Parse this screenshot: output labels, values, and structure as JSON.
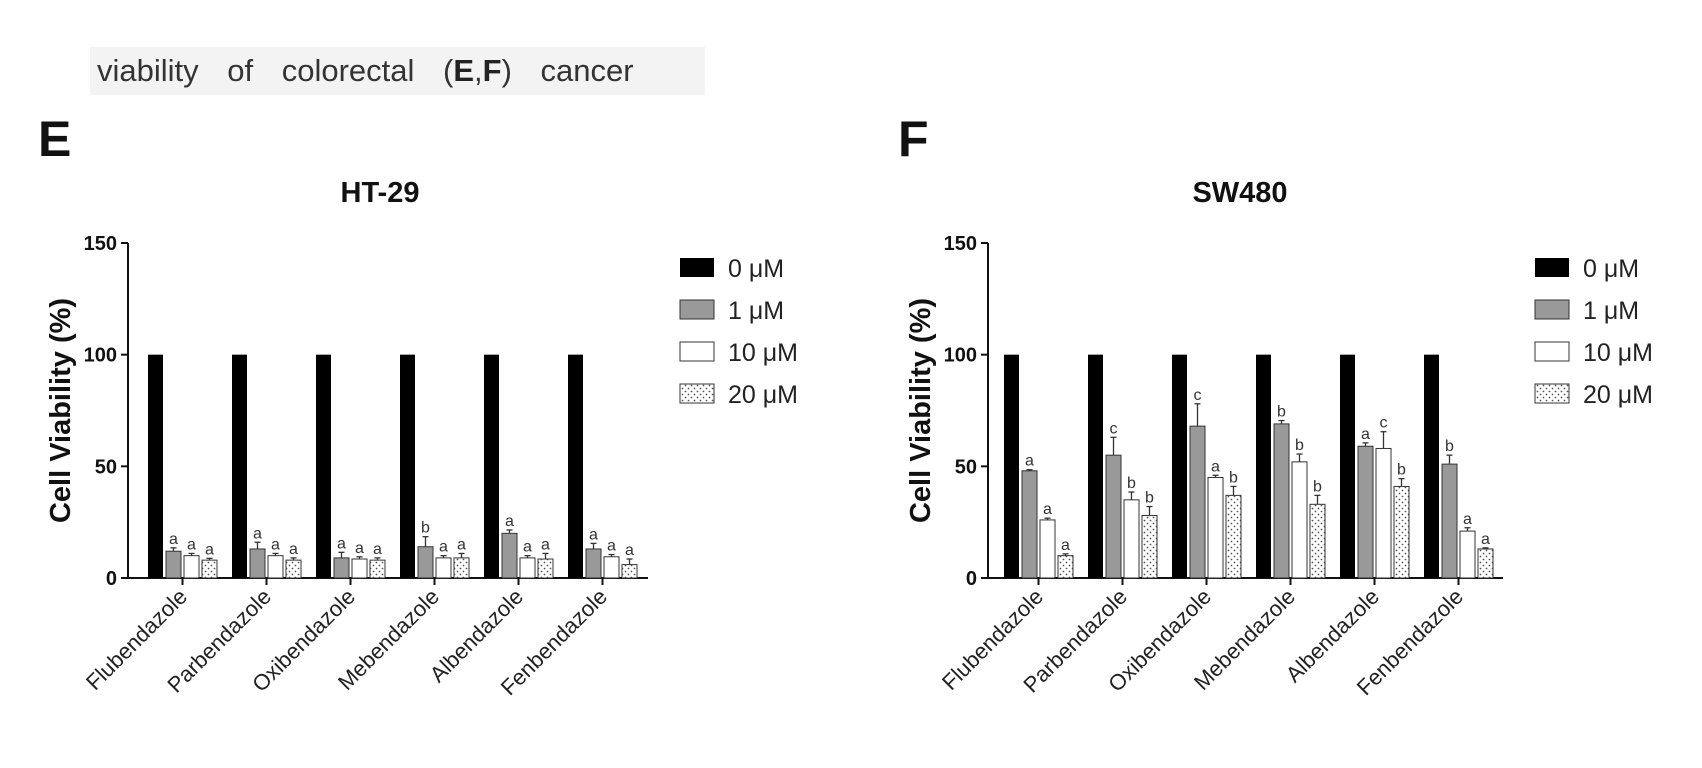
{
  "caption": {
    "text_before": "viability of colorectal (",
    "bold1": "E",
    "comma": ",",
    "bold2": "F",
    "text_after": ") cancer"
  },
  "colors": {
    "s0": "#000000",
    "s1": "#999999",
    "s2": "#ffffff",
    "s3": "#ffffff",
    "axis": "#111111"
  },
  "chart_data": [
    {
      "panel": "E",
      "type": "bar",
      "title": "HT-29",
      "xlabel": "",
      "ylabel": "Cell Viability (%)",
      "ylim": [
        0,
        150
      ],
      "yticks": [
        0,
        50,
        100,
        150
      ],
      "legend_position": "right",
      "categories": [
        "Flubendazole",
        "Parbendazole",
        "Oxibendazole",
        "Mebendazole",
        "Albendazole",
        "Fenbendazole"
      ],
      "series": [
        {
          "name": "0 μM",
          "pattern": "solid-black",
          "values": [
            100,
            100,
            100,
            100,
            100,
            100
          ],
          "errors": [
            0,
            0,
            0,
            0,
            0,
            0
          ],
          "labels": [
            "",
            "",
            "",
            "",
            "",
            ""
          ]
        },
        {
          "name": "1 μM",
          "pattern": "solid-gray",
          "values": [
            12,
            13,
            9,
            14,
            20,
            13
          ],
          "errors": [
            1.5,
            3,
            2.5,
            4.5,
            1.5,
            2.5
          ],
          "labels": [
            "a",
            "a",
            "a",
            "b",
            "a",
            "a"
          ]
        },
        {
          "name": "10 μM",
          "pattern": "white",
          "values": [
            10,
            10,
            8.5,
            9,
            9,
            9.5
          ],
          "errors": [
            1,
            1,
            1,
            1,
            1,
            1
          ],
          "labels": [
            "a",
            "a",
            "a",
            "a",
            "a",
            "a"
          ]
        },
        {
          "name": "20 μM",
          "pattern": "dotted",
          "values": [
            8,
            8,
            8,
            9,
            8.5,
            6
          ],
          "errors": [
            0.8,
            1,
            1,
            2,
            2.5,
            2.5
          ],
          "labels": [
            "a",
            "a",
            "a",
            "a",
            "a",
            "a"
          ]
        }
      ]
    },
    {
      "panel": "F",
      "type": "bar",
      "title": "SW480",
      "xlabel": "",
      "ylabel": "Cell Viability (%)",
      "ylim": [
        0,
        150
      ],
      "yticks": [
        0,
        50,
        100,
        150
      ],
      "legend_position": "right",
      "categories": [
        "Flubendazole",
        "Parbendazole",
        "Oxibendazole",
        "Mebendazole",
        "Albendazole",
        "Fenbendazole"
      ],
      "series": [
        {
          "name": "0 μM",
          "pattern": "solid-black",
          "values": [
            100,
            100,
            100,
            100,
            100,
            100
          ],
          "errors": [
            0,
            0,
            0,
            0,
            0,
            0
          ],
          "labels": [
            "",
            "",
            "",
            "",
            "",
            ""
          ]
        },
        {
          "name": "1 μM",
          "pattern": "solid-gray",
          "values": [
            48,
            55,
            68,
            69,
            59,
            51
          ],
          "errors": [
            0.5,
            8,
            10,
            1.5,
            1.5,
            4
          ],
          "labels": [
            "a",
            "c",
            "c",
            "b",
            "a",
            "b"
          ]
        },
        {
          "name": "10 μM",
          "pattern": "white",
          "values": [
            26,
            35,
            45,
            52,
            58,
            21
          ],
          "errors": [
            0.8,
            3.5,
            1,
            3.5,
            7.5,
            1.5
          ],
          "labels": [
            "a",
            "b",
            "a",
            "b",
            "c",
            "a"
          ]
        },
        {
          "name": "20 μM",
          "pattern": "dotted",
          "values": [
            10,
            28,
            37,
            33,
            41,
            13
          ],
          "errors": [
            0.8,
            4,
            4,
            4,
            3.5,
            0.5
          ],
          "labels": [
            "a",
            "b",
            "b",
            "b",
            "b",
            "a"
          ]
        }
      ]
    }
  ]
}
